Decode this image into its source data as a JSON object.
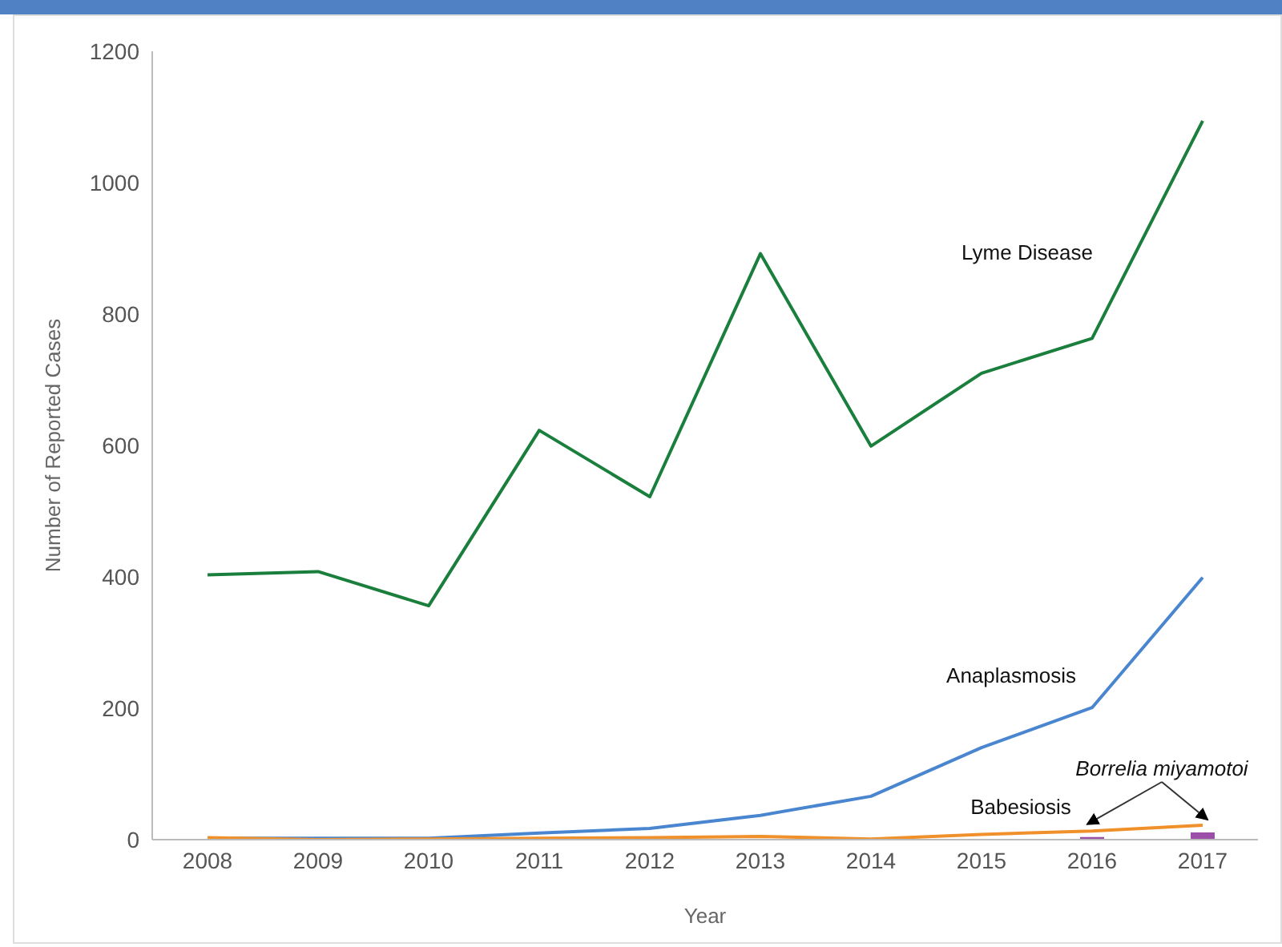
{
  "chart_data": {
    "type": "line",
    "xlabel": "Year",
    "ylabel": "Number of Reported Cases",
    "categories": [
      "2008",
      "2009",
      "2010",
      "2011",
      "2012",
      "2013",
      "2014",
      "2015",
      "2016",
      "2017"
    ],
    "ylim": [
      0,
      1200
    ],
    "yticks": [
      0,
      200,
      400,
      600,
      800,
      1000,
      1200
    ],
    "series": [
      {
        "name": "Lyme Disease",
        "color": "#1a7f3c",
        "values": [
          403,
          408,
          356,
          623,
          522,
          892,
          599,
          710,
          763,
          1094
        ]
      },
      {
        "name": "Anaplasmosis",
        "color": "#4a86d0",
        "values": [
          2,
          2,
          2,
          10,
          17,
          37,
          66,
          140,
          201,
          399
        ]
      },
      {
        "name": "Babesiosis",
        "color": "#f0902a",
        "values": [
          3,
          0,
          1,
          2,
          3,
          5,
          1,
          8,
          13,
          22
        ]
      },
      {
        "name": "Borrelia miyamotoi",
        "type": "bar",
        "color": "#9b4fa8",
        "values": [
          null,
          null,
          null,
          null,
          null,
          null,
          null,
          null,
          4,
          11
        ]
      }
    ]
  }
}
